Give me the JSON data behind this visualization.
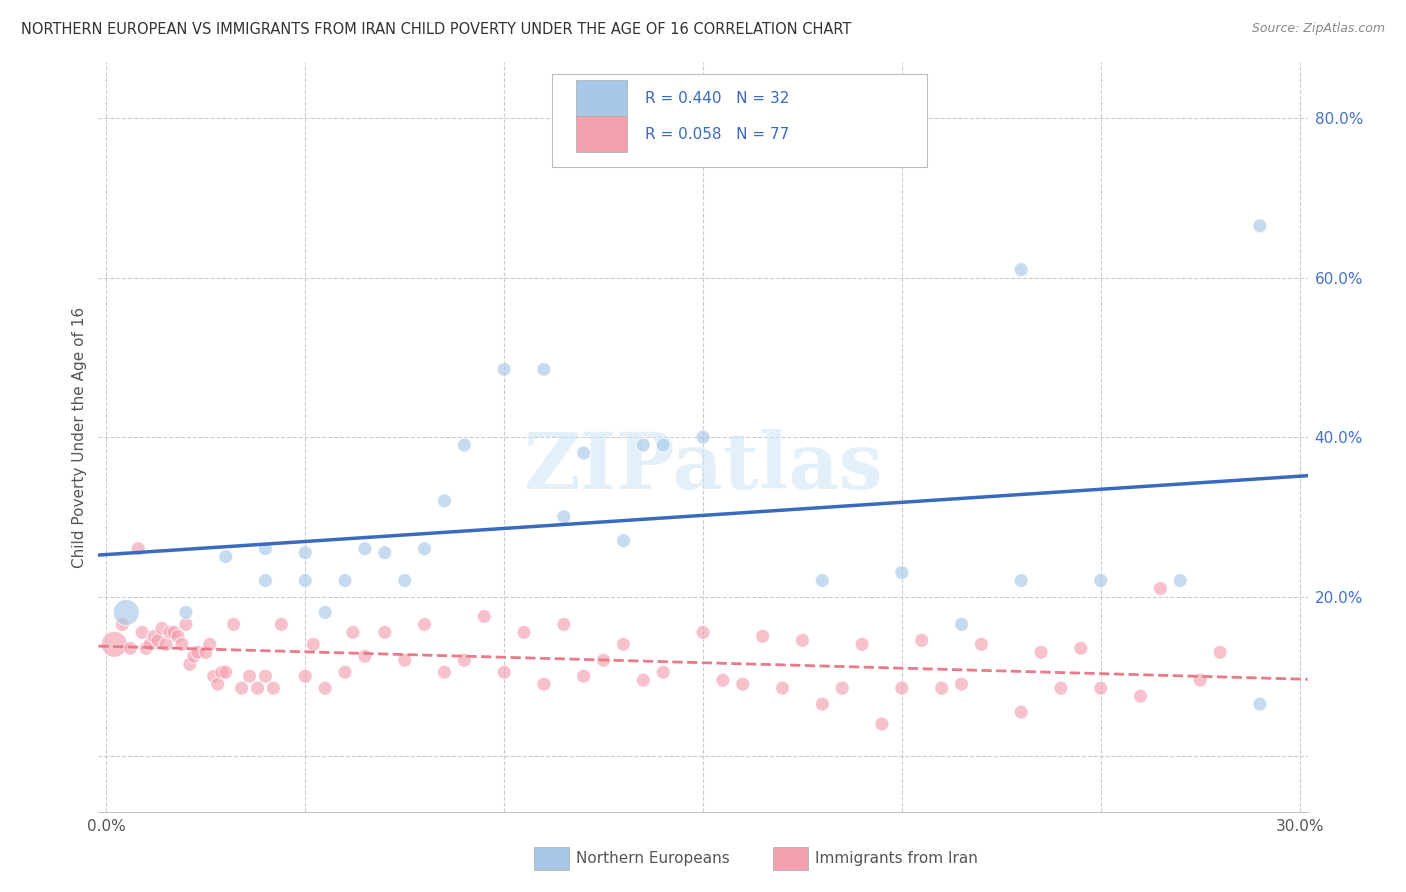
{
  "title": "NORTHERN EUROPEAN VS IMMIGRANTS FROM IRAN CHILD POVERTY UNDER THE AGE OF 16 CORRELATION CHART",
  "source": "Source: ZipAtlas.com",
  "ylabel": "Child Poverty Under the Age of 16",
  "xlim": [
    -0.002,
    0.302
  ],
  "ylim": [
    -0.07,
    0.87
  ],
  "yticks": [
    0.0,
    0.2,
    0.4,
    0.6,
    0.8
  ],
  "xticks": [
    0.0,
    0.05,
    0.1,
    0.15,
    0.2,
    0.25,
    0.3
  ],
  "xtick_labels": [
    "0.0%",
    "",
    "",
    "",
    "",
    "",
    "30.0%"
  ],
  "ytick_labels_right": [
    "",
    "20.0%",
    "40.0%",
    "60.0%",
    "80.0%"
  ],
  "legend_labels": [
    "Northern Europeans",
    "Immigrants from Iran"
  ],
  "blue_color": "#a8c8e8",
  "pink_color": "#f4a0b0",
  "blue_line_color": "#3a6abf",
  "pink_line_color": "#e87a8a",
  "watermark_text": "ZIPatlas",
  "blue_x": [
    0.005,
    0.02,
    0.03,
    0.04,
    0.04,
    0.05,
    0.05,
    0.055,
    0.06,
    0.065,
    0.07,
    0.075,
    0.08,
    0.085,
    0.09,
    0.1,
    0.11,
    0.115,
    0.12,
    0.13,
    0.135,
    0.14,
    0.15,
    0.18,
    0.2,
    0.215,
    0.23,
    0.23,
    0.25,
    0.27,
    0.29,
    0.29
  ],
  "blue_y": [
    0.18,
    0.18,
    0.25,
    0.22,
    0.26,
    0.22,
    0.255,
    0.18,
    0.22,
    0.26,
    0.255,
    0.22,
    0.26,
    0.32,
    0.39,
    0.485,
    0.485,
    0.3,
    0.38,
    0.27,
    0.39,
    0.39,
    0.4,
    0.22,
    0.23,
    0.165,
    0.22,
    0.61,
    0.22,
    0.22,
    0.065,
    0.665
  ],
  "blue_sizes": [
    350,
    100,
    100,
    100,
    100,
    100,
    100,
    100,
    100,
    100,
    100,
    100,
    100,
    100,
    100,
    100,
    100,
    100,
    100,
    100,
    100,
    100,
    100,
    100,
    100,
    100,
    100,
    100,
    100,
    100,
    100,
    100
  ],
  "pink_x": [
    0.002,
    0.004,
    0.006,
    0.008,
    0.009,
    0.01,
    0.011,
    0.012,
    0.013,
    0.014,
    0.015,
    0.016,
    0.017,
    0.018,
    0.019,
    0.02,
    0.021,
    0.022,
    0.023,
    0.025,
    0.026,
    0.027,
    0.028,
    0.029,
    0.03,
    0.032,
    0.034,
    0.036,
    0.038,
    0.04,
    0.042,
    0.044,
    0.05,
    0.052,
    0.055,
    0.06,
    0.062,
    0.065,
    0.07,
    0.075,
    0.08,
    0.085,
    0.09,
    0.095,
    0.1,
    0.105,
    0.11,
    0.115,
    0.12,
    0.125,
    0.13,
    0.135,
    0.14,
    0.15,
    0.155,
    0.16,
    0.165,
    0.17,
    0.175,
    0.18,
    0.185,
    0.19,
    0.195,
    0.2,
    0.205,
    0.21,
    0.215,
    0.22,
    0.23,
    0.235,
    0.24,
    0.245,
    0.25,
    0.26,
    0.265,
    0.275,
    0.28
  ],
  "pink_y": [
    0.14,
    0.165,
    0.135,
    0.26,
    0.155,
    0.135,
    0.14,
    0.15,
    0.145,
    0.16,
    0.14,
    0.155,
    0.155,
    0.15,
    0.14,
    0.165,
    0.115,
    0.125,
    0.13,
    0.13,
    0.14,
    0.1,
    0.09,
    0.105,
    0.105,
    0.165,
    0.085,
    0.1,
    0.085,
    0.1,
    0.085,
    0.165,
    0.1,
    0.14,
    0.085,
    0.105,
    0.155,
    0.125,
    0.155,
    0.12,
    0.165,
    0.105,
    0.12,
    0.175,
    0.105,
    0.155,
    0.09,
    0.165,
    0.1,
    0.12,
    0.14,
    0.095,
    0.105,
    0.155,
    0.095,
    0.09,
    0.15,
    0.085,
    0.145,
    0.065,
    0.085,
    0.14,
    0.04,
    0.085,
    0.145,
    0.085,
    0.09,
    0.14,
    0.055,
    0.13,
    0.085,
    0.135,
    0.085,
    0.075,
    0.21,
    0.095,
    0.13
  ],
  "pink_sizes": [
    350,
    100,
    100,
    100,
    100,
    100,
    100,
    100,
    100,
    100,
    100,
    100,
    100,
    100,
    100,
    100,
    100,
    100,
    100,
    100,
    100,
    100,
    100,
    100,
    100,
    100,
    100,
    100,
    100,
    100,
    100,
    100,
    100,
    100,
    100,
    100,
    100,
    100,
    100,
    100,
    100,
    100,
    100,
    100,
    100,
    100,
    100,
    100,
    100,
    100,
    100,
    100,
    100,
    100,
    100,
    100,
    100,
    100,
    100,
    100,
    100,
    100,
    100,
    100,
    100,
    100,
    100,
    100,
    100,
    100,
    100,
    100,
    100,
    100,
    100,
    100,
    100
  ]
}
